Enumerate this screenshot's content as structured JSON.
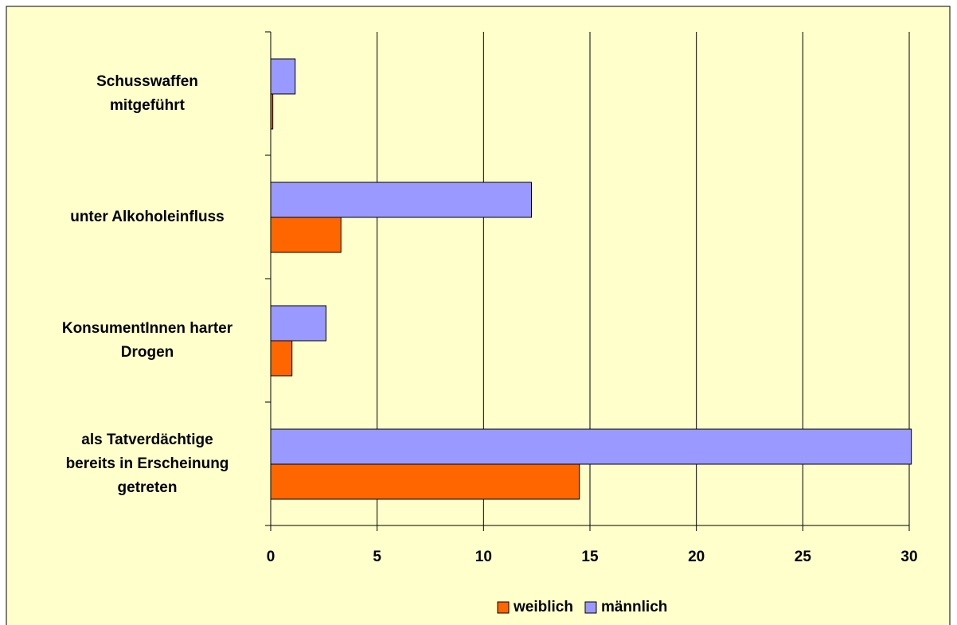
{
  "chart_data": {
    "type": "hbar",
    "categories": [
      [
        "Schusswaffen",
        "mitgeführt"
      ],
      [
        "unter Alkoholeinfluss"
      ],
      [
        "KonsumentInnen harter",
        "Drogen"
      ],
      [
        "als Tatverdächtige",
        "bereits in Erscheinung",
        "getreten"
      ]
    ],
    "series": [
      {
        "name": "weiblich",
        "color": "#ff6600",
        "values": [
          0.1,
          3.3,
          1.0,
          14.5
        ]
      },
      {
        "name": "männlich",
        "color": "#9999ff",
        "values": [
          1.15,
          12.25,
          2.6,
          30.1
        ]
      }
    ],
    "xlim": [
      0,
      30
    ],
    "xticks": [
      0,
      5,
      10,
      15,
      20,
      25,
      30
    ],
    "grid": true,
    "legend": "bottom"
  }
}
